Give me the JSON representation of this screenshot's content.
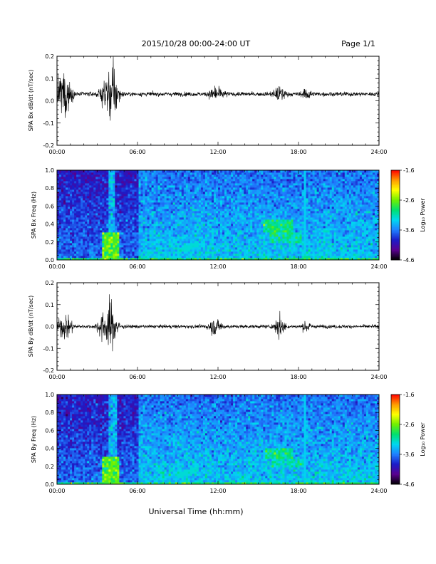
{
  "header": {
    "date_range": "2015/10/28  00:00-24:00 UT",
    "page": "Page 1/1"
  },
  "time_ticks": [
    "00:00",
    "06:00",
    "12:00",
    "18:00",
    "24:00"
  ],
  "xlabel": "Universal Time (hh:mm)",
  "colorbar": {
    "label": "Log₁₀ Power",
    "ticks": [
      "-1.6",
      "-2.6",
      "-3.6",
      "-4.6"
    ],
    "range": [
      -4.6,
      -1.6
    ],
    "colormap": [
      "#000000",
      "#5a0090",
      "#1c1cc8",
      "#1f7fff",
      "#00d8f0",
      "#00e070",
      "#70f000",
      "#ffff00",
      "#ff9a00",
      "#ff0000"
    ]
  },
  "chart_data": [
    {
      "type": "line",
      "ylabel": "SPA Bx dB/dt (nT/sec)",
      "xlim": [
        0,
        24
      ],
      "ylim": [
        -0.2,
        0.2
      ],
      "yticks": [
        "-0.2",
        "-0.1",
        "0.0",
        "0.1",
        "0.2"
      ],
      "baseline": 0.03,
      "noise_sigma": 0.012,
      "bursts": [
        {
          "t": 0.5,
          "w": 0.45,
          "amp": 0.17
        },
        {
          "t": 3.8,
          "w": 0.45,
          "amp": 0.14
        },
        {
          "t": 4.3,
          "w": 0.3,
          "amp": 0.1
        },
        {
          "t": 11.9,
          "w": 0.5,
          "amp": 0.035
        },
        {
          "t": 16.6,
          "w": 0.4,
          "amp": 0.04
        },
        {
          "t": 18.6,
          "w": 0.3,
          "amp": 0.03
        }
      ]
    },
    {
      "type": "heatmap",
      "ylabel": "SPA Bx Freq (Hz)",
      "xlim": [
        0,
        24
      ],
      "ylim": [
        0.0,
        1.0
      ],
      "yticks": [
        "0.0",
        "0.2",
        "0.4",
        "0.6",
        "0.8",
        "1.0"
      ],
      "background_log_power": -3.9,
      "features": [
        {
          "kind": "band",
          "t0": 3.3,
          "t1": 4.6,
          "f0": 0.0,
          "f1": 0.3,
          "p": -2.7
        },
        {
          "kind": "band",
          "t0": 3.8,
          "t1": 4.3,
          "f0": 0.0,
          "f1": 1.0,
          "p": -3.4
        },
        {
          "kind": "band",
          "t0": 0.0,
          "t1": 24.0,
          "f0": 0.0,
          "f1": 0.03,
          "p": -2.9
        },
        {
          "kind": "blob",
          "t0": 15.3,
          "t1": 17.6,
          "f0": 0.32,
          "f1": 0.45,
          "p": -3.0
        },
        {
          "kind": "blob",
          "t0": 15.8,
          "t1": 18.3,
          "f0": 0.2,
          "f1": 0.32,
          "p": -3.1
        },
        {
          "kind": "line",
          "t0": 9.0,
          "t1": 10.5,
          "f0": 0.1,
          "f1": 0.18,
          "p": -3.2
        },
        {
          "kind": "vline",
          "t": 18.5,
          "p": -3.3
        }
      ]
    },
    {
      "type": "line",
      "ylabel": "SPA By dB/dt (nT/sec)",
      "xlim": [
        0,
        24
      ],
      "ylim": [
        -0.2,
        0.2
      ],
      "yticks": [
        "-0.2",
        "-0.1",
        "0.0",
        "0.1",
        "0.2"
      ],
      "baseline": 0.0,
      "noise_sigma": 0.01,
      "bursts": [
        {
          "t": 0.6,
          "w": 0.5,
          "amp": 0.07
        },
        {
          "t": 3.7,
          "w": 0.55,
          "amp": 0.11
        },
        {
          "t": 4.2,
          "w": 0.35,
          "amp": 0.07
        },
        {
          "t": 11.8,
          "w": 0.5,
          "amp": 0.04
        },
        {
          "t": 16.6,
          "w": 0.35,
          "amp": 0.06
        },
        {
          "t": 18.6,
          "w": 0.3,
          "amp": 0.03
        }
      ]
    },
    {
      "type": "heatmap",
      "ylabel": "SPA By Freq (Hz)",
      "xlim": [
        0,
        24
      ],
      "ylim": [
        0.0,
        1.0
      ],
      "yticks": [
        "0.0",
        "0.2",
        "0.4",
        "0.6",
        "0.8",
        "1.0"
      ],
      "background_log_power": -3.9,
      "features": [
        {
          "kind": "band",
          "t0": 3.3,
          "t1": 4.6,
          "f0": 0.0,
          "f1": 0.3,
          "p": -2.7
        },
        {
          "kind": "band",
          "t0": 3.9,
          "t1": 4.4,
          "f0": 0.0,
          "f1": 1.0,
          "p": -3.4
        },
        {
          "kind": "band",
          "t0": 0.0,
          "t1": 24.0,
          "f0": 0.0,
          "f1": 0.03,
          "p": -2.9
        },
        {
          "kind": "blob",
          "t0": 15.5,
          "t1": 17.6,
          "f0": 0.28,
          "f1": 0.4,
          "p": -3.0
        },
        {
          "kind": "blob",
          "t0": 16.0,
          "t1": 18.4,
          "f0": 0.18,
          "f1": 0.28,
          "p": -3.1
        },
        {
          "kind": "line",
          "t0": 9.0,
          "t1": 10.5,
          "f0": 0.1,
          "f1": 0.18,
          "p": -3.2
        },
        {
          "kind": "vline",
          "t": 18.5,
          "p": -3.3
        }
      ]
    }
  ]
}
